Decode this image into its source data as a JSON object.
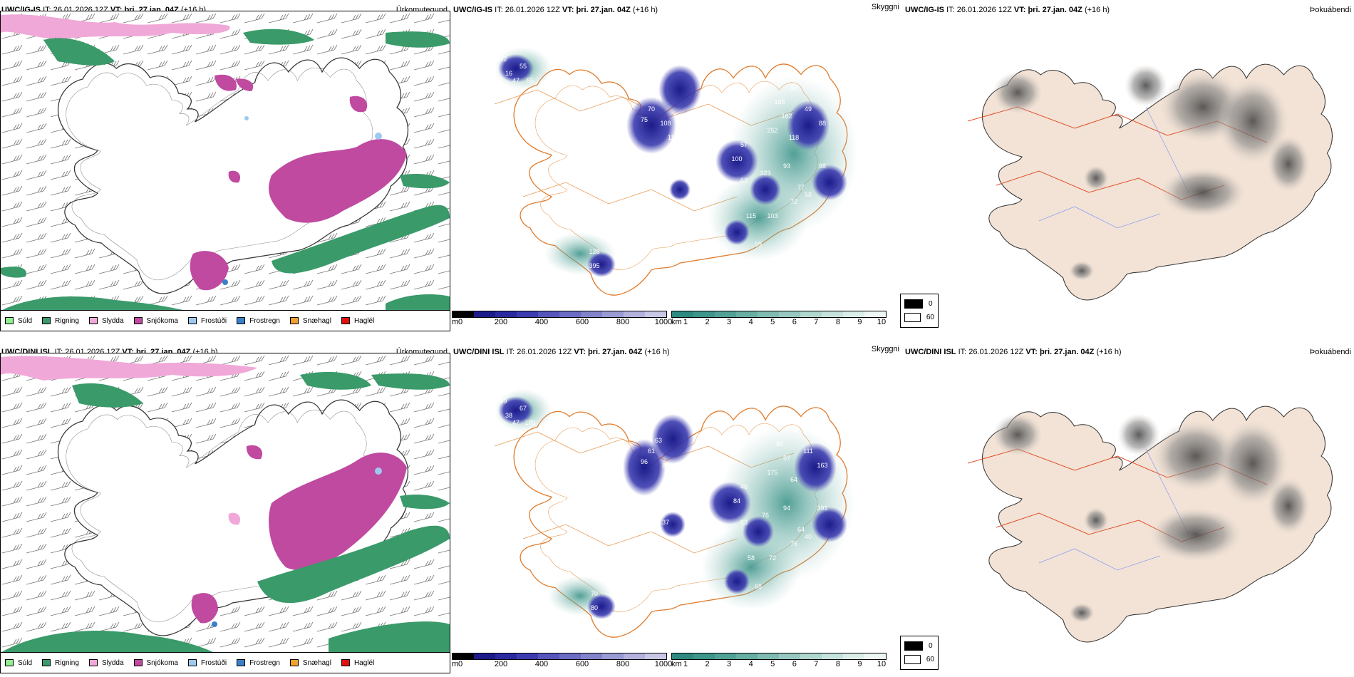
{
  "rows": [
    {
      "model": "UWC/IG-IS",
      "it_label": "IT:",
      "it_value": "26.01.2026 12Z",
      "vt_label": "VT:",
      "vt_value": "þri. 27.jan. 04Z",
      "lead": "(+16 h)",
      "panel_titles": [
        "Úrkomutegund",
        "Skyggni",
        "Þokuábendi"
      ],
      "ceiling_labels": [
        "142",
        "55",
        "47",
        "70",
        "71",
        "75",
        "108",
        "112",
        "74",
        "180",
        "178",
        "93",
        "165",
        "49",
        "88",
        "162",
        "118",
        "252",
        "57",
        "100",
        "84",
        "90",
        "62",
        "323",
        "93",
        "77",
        "98",
        "72",
        "58",
        "115",
        "103",
        "59",
        "91",
        "79",
        "128",
        "395",
        "28",
        "16",
        "55"
      ]
    },
    {
      "model": "UWC/DINI ISL",
      "it_label": "IT:",
      "it_value": "26.01.2026 12Z",
      "vt_label": "VT:",
      "vt_value": "þri. 27.jan. 04Z",
      "lead": "(+16 h)",
      "panel_titles": [
        "Úrkomutegund",
        "Skyggni",
        "Þokuábendi"
      ],
      "ceiling_labels": [
        "189",
        "67",
        "47",
        "61",
        "63",
        "96",
        "84",
        "50",
        "98",
        "125",
        "147",
        "72",
        "85",
        "111",
        "163",
        "57",
        "64",
        "175",
        "46",
        "84",
        "91",
        "152",
        "63",
        "76",
        "94",
        "64",
        "391",
        "75",
        "40",
        "58",
        "72",
        "68",
        "100",
        "37",
        "70",
        "80",
        "147",
        "38",
        "185",
        "44"
      ]
    }
  ],
  "precip_legend": [
    {
      "label": "Súld",
      "color": "#90ee90"
    },
    {
      "label": "Rigning",
      "color": "#3a9a6a"
    },
    {
      "label": "Slydda",
      "color": "#f0a8d8"
    },
    {
      "label": "Snjókoma",
      "color": "#c04aa0"
    },
    {
      "label": "Frostúði",
      "color": "#9ec8f0"
    },
    {
      "label": "Frostregn",
      "color": "#3a80c8"
    },
    {
      "label": "Snæhagl",
      "color": "#f0a030"
    },
    {
      "label": "Haglél",
      "color": "#e01010"
    }
  ],
  "ceiling_scale": {
    "unit": "m",
    "ticks": [
      "0",
      "200",
      "400",
      "600",
      "800",
      "1000"
    ],
    "colors": [
      "#000000",
      "#1b1b8a",
      "#2a2aa0",
      "#3c3cb0",
      "#5555bb",
      "#6c6cc4",
      "#8383cc",
      "#9a9ad4",
      "#b2b2dc",
      "#c8c8e6"
    ]
  },
  "visibility_scale": {
    "unit": "km",
    "ticks": [
      "1",
      "2",
      "3",
      "4",
      "5",
      "6",
      "7",
      "8",
      "9",
      "10"
    ],
    "colors": [
      "#2e8a80",
      "#3e958b",
      "#52a196",
      "#68aea3",
      "#80bbb1",
      "#98c8bf",
      "#b0d6ce",
      "#c6e2dc",
      "#dbede9",
      "#eef7f5"
    ]
  },
  "fog_legend": [
    {
      "label": "0",
      "color": "#000000"
    },
    {
      "label": "60",
      "color": "#ffffff"
    }
  ]
}
